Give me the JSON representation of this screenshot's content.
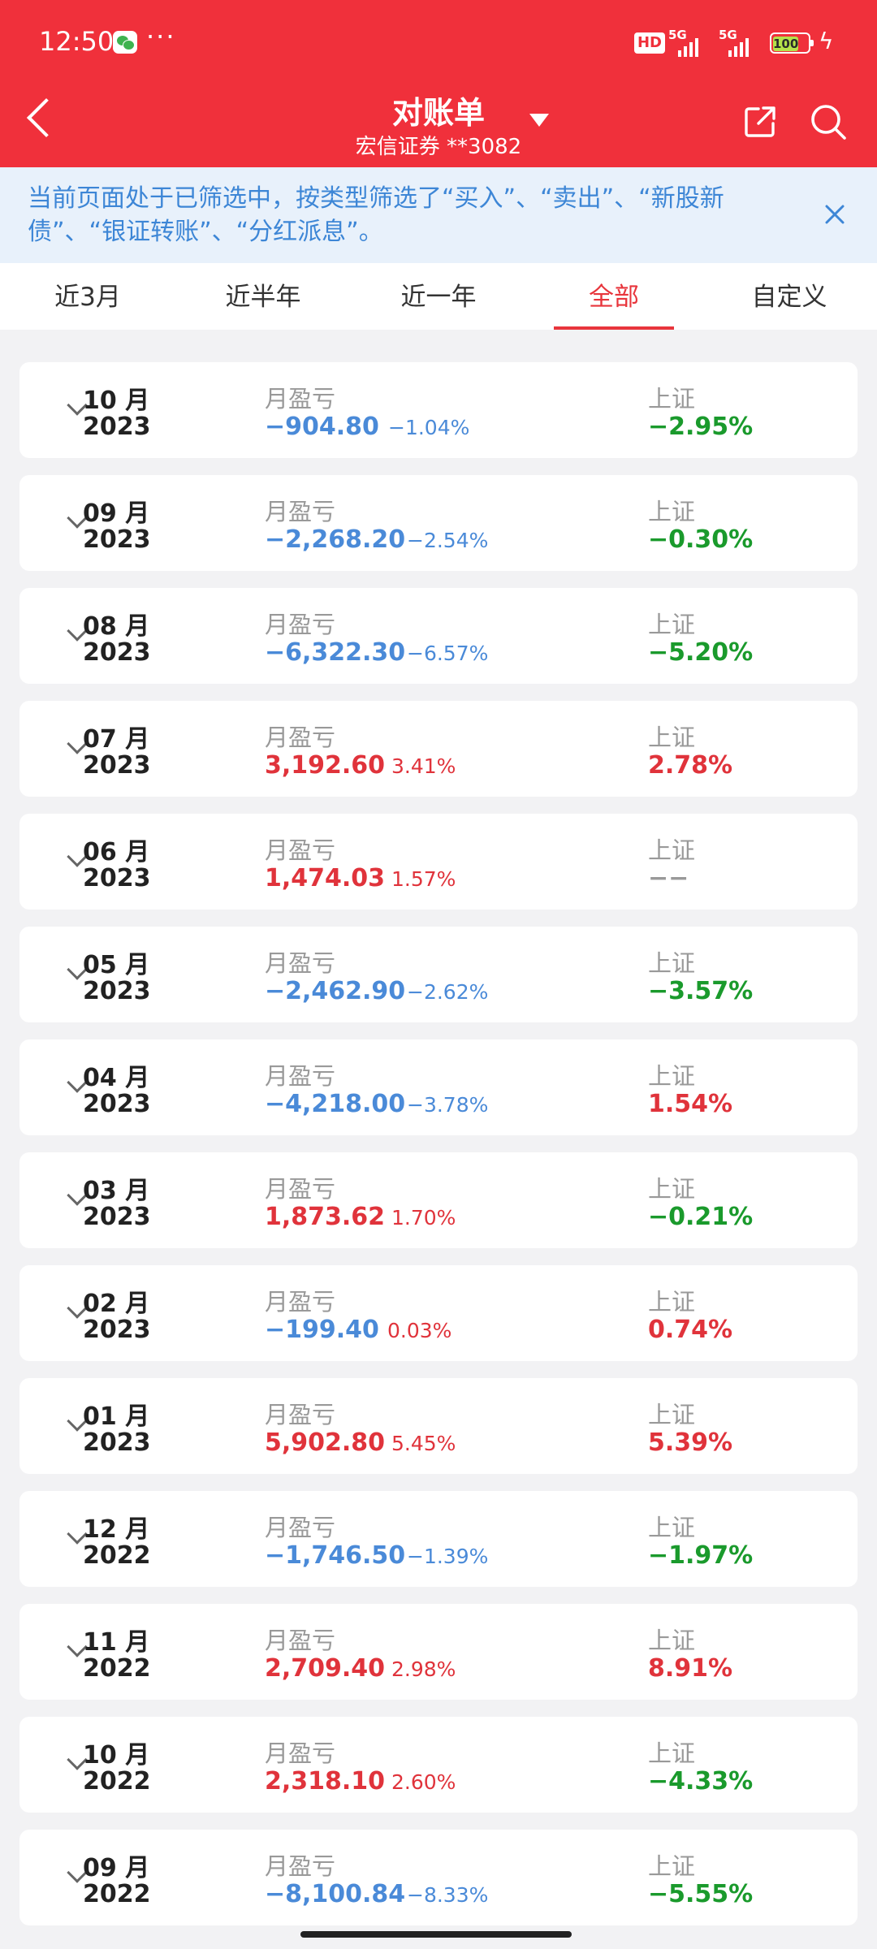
{
  "status_bar": {
    "time": "12:50",
    "more": "···",
    "hd": "HD",
    "net1": "5G",
    "net2": "5G",
    "battery": "100",
    "icons": [
      "wechat-icon",
      "hd-icon",
      "signal-icon",
      "signal-icon",
      "battery-icon",
      "charging-icon"
    ]
  },
  "header": {
    "title": "对账单",
    "subtitle": "宏信证券 **3082",
    "icons": [
      "back-icon",
      "dropdown-icon",
      "share-icon",
      "search-icon"
    ]
  },
  "filter_banner": {
    "text": "当前页面处于已筛选中，按类型筛选了“买入”、“卖出”、“新股新债”、“银证转账”、“分红派息”。",
    "icons": [
      "close-icon"
    ]
  },
  "tabs": [
    {
      "label": "近3月"
    },
    {
      "label": "近半年"
    },
    {
      "label": "近一年"
    },
    {
      "label": "全部",
      "active": true
    },
    {
      "label": "自定义"
    }
  ],
  "card_labels": {
    "pl_label": "月盈亏",
    "index_label": "上证"
  },
  "statements": [
    {
      "month": "10 月",
      "year": "2023",
      "pl": "−904.80",
      "pl_pct": "−1.04%",
      "index": "−2.95%",
      "pl_color": "neg",
      "pct_color": "neg",
      "index_color": "green"
    },
    {
      "month": "09 月",
      "year": "2023",
      "pl": "−2,268.20",
      "pl_pct": "−2.54%",
      "index": "−0.30%",
      "pl_color": "neg",
      "pct_color": "neg",
      "index_color": "green"
    },
    {
      "month": "08 月",
      "year": "2023",
      "pl": "−6,322.30",
      "pl_pct": "−6.57%",
      "index": "−5.20%",
      "pl_color": "neg",
      "pct_color": "neg",
      "index_color": "green"
    },
    {
      "month": "07 月",
      "year": "2023",
      "pl": "3,192.60",
      "pl_pct": "3.41%",
      "index": "2.78%",
      "pl_color": "pos",
      "pct_color": "pos",
      "index_color": "pos"
    },
    {
      "month": "06 月",
      "year": "2023",
      "pl": "1,474.03",
      "pl_pct": "1.57%",
      "index": "−−",
      "pl_color": "pos",
      "pct_color": "pos",
      "index_color": "grey"
    },
    {
      "month": "05 月",
      "year": "2023",
      "pl": "−2,462.90",
      "pl_pct": "−2.62%",
      "index": "−3.57%",
      "pl_color": "neg",
      "pct_color": "neg",
      "index_color": "green"
    },
    {
      "month": "04 月",
      "year": "2023",
      "pl": "−4,218.00",
      "pl_pct": "−3.78%",
      "index": "1.54%",
      "pl_color": "neg",
      "pct_color": "neg",
      "index_color": "pos"
    },
    {
      "month": "03 月",
      "year": "2023",
      "pl": "1,873.62",
      "pl_pct": "1.70%",
      "index": "−0.21%",
      "pl_color": "pos",
      "pct_color": "pos",
      "index_color": "green"
    },
    {
      "month": "02 月",
      "year": "2023",
      "pl": "−199.40",
      "pl_pct": "0.03%",
      "index": "0.74%",
      "pl_color": "neg",
      "pct_color": "pos",
      "index_color": "pos"
    },
    {
      "month": "01 月",
      "year": "2023",
      "pl": "5,902.80",
      "pl_pct": "5.45%",
      "index": "5.39%",
      "pl_color": "pos",
      "pct_color": "pos",
      "index_color": "pos"
    },
    {
      "month": "12 月",
      "year": "2022",
      "pl": "−1,746.50",
      "pl_pct": "−1.39%",
      "index": "−1.97%",
      "pl_color": "neg",
      "pct_color": "neg",
      "index_color": "green"
    },
    {
      "month": "11 月",
      "year": "2022",
      "pl": "2,709.40",
      "pl_pct": "2.98%",
      "index": "8.91%",
      "pl_color": "pos",
      "pct_color": "pos",
      "index_color": "pos"
    },
    {
      "month": "10 月",
      "year": "2022",
      "pl": "2,318.10",
      "pl_pct": "2.60%",
      "index": "−4.33%",
      "pl_color": "pos",
      "pct_color": "pos",
      "index_color": "green"
    },
    {
      "month": "09 月",
      "year": "2022",
      "pl": "−8,100.84",
      "pl_pct": "−8.33%",
      "index": "−5.55%",
      "pl_color": "neg",
      "pct_color": "neg",
      "index_color": "green"
    }
  ],
  "colors": {
    "header_red": "#f0303b",
    "tab_active": "#e8353c",
    "negative_blue": "#4a8ad8",
    "positive_red": "#e0333b",
    "index_green": "#1a9a2c",
    "banner_bg": "#e8f1fb",
    "banner_text": "#3d86d6"
  }
}
